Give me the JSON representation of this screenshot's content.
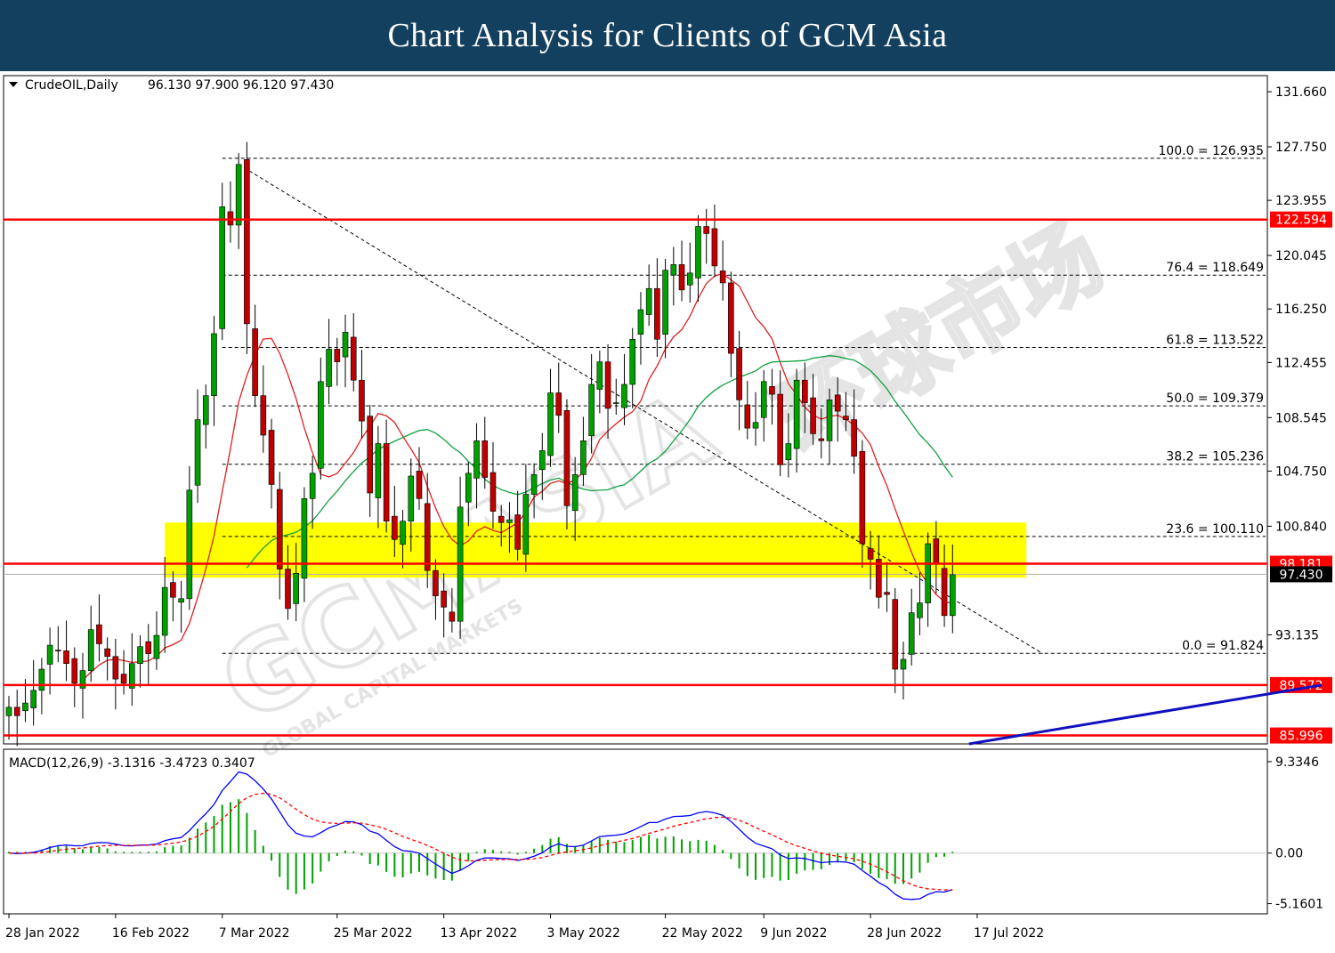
{
  "page": {
    "title": "Chart Analysis for Clients of GCM Asia"
  },
  "watermark": {
    "brand": "GCMASIA",
    "cn": "环球市场",
    "tagline": "GLOBAL CAPITAL MARKETS"
  },
  "colors": {
    "banner": "#14405f",
    "bull": "#00a000",
    "bear": "#c00000",
    "ma_fast": "#e02020",
    "ma_slow": "#10a040",
    "level": "#ff0000",
    "zone": "#ffff00",
    "trend": "#1010c0",
    "macd": "#0000ff",
    "signal": "#ff0000",
    "hist": "#00a000"
  },
  "chart_data": {
    "type": "candlestick",
    "header": {
      "symbol": "CrudeOIL,Daily",
      "ohlc": "96.130 97.900 96.120 97.430"
    },
    "ylim": [
      85.4,
      132.8
    ],
    "y_ticks": [
      "131.660",
      "127.750",
      "123.955",
      "120.045",
      "116.250",
      "112.455",
      "108.545",
      "104.750",
      "100.840",
      "93.135"
    ],
    "x_ticks": [
      {
        "label": "28 Jan 2022",
        "i": 0
      },
      {
        "label": "16 Feb 2022",
        "i": 13
      },
      {
        "label": "7 Mar 2022",
        "i": 26
      },
      {
        "label": "25 Mar 2022",
        "i": 40
      },
      {
        "label": "13 Apr 2022",
        "i": 53
      },
      {
        "label": "3 May 2022",
        "i": 66
      },
      {
        "label": "22 May 2022",
        "i": 80
      },
      {
        "label": "9 Jun 2022",
        "i": 92
      },
      {
        "label": "28 Jun 2022",
        "i": 105
      },
      {
        "label": "17 Jul 2022",
        "i": 118
      }
    ],
    "levels": [
      {
        "value": 122.594,
        "label": "122.594"
      },
      {
        "value": 98.181,
        "label": "98.181"
      },
      {
        "value": 89.572,
        "label": "89.572"
      },
      {
        "value": 85.996,
        "label": "85.996"
      }
    ],
    "last_price": {
      "value": 97.43,
      "label": "97.430"
    },
    "zone": {
      "from": 97.2,
      "to": 101.1,
      "start_i": 19,
      "end_i": 124
    },
    "fibonacci": [
      {
        "label": "100.0 = 126.935",
        "value": 126.935
      },
      {
        "label": "76.4 = 118.649",
        "value": 118.649
      },
      {
        "label": "61.8 = 113.522",
        "value": 113.522
      },
      {
        "label": "50.0 = 109.379",
        "value": 109.379
      },
      {
        "label": "38.2 = 105.236",
        "value": 105.236
      },
      {
        "label": "23.6 = 100.110",
        "value": 100.11
      },
      {
        "label": "0.0 = 91.824",
        "value": 91.824
      }
    ],
    "fib_start_i": 26,
    "fib_diagonal": {
      "from": [
        28,
        126.5
      ],
      "to": [
        126,
        91.8
      ]
    },
    "trendline": {
      "from": [
        117,
        85.4
      ],
      "to": [
        160,
        89.572
      ]
    },
    "closes": [
      88,
      87.4,
      88.3,
      89.2,
      90.7,
      92.4,
      92.0,
      91.1,
      89.7,
      90.6,
      93.5,
      92.5,
      91.6,
      90.0,
      89.7,
      91.1,
      92.3,
      91.8,
      93.1,
      96.5,
      95.8,
      95.7,
      103.4,
      108.4,
      110.1,
      114.5,
      123.5,
      122.2,
      126.5,
      115.2,
      110.1,
      107.3,
      103.8,
      97.8,
      95.0,
      97.5,
      102.8,
      104.6,
      111.1,
      113.4,
      112.5,
      114.6,
      111.2,
      108.3,
      103.2,
      106.7,
      101.2,
      99.9,
      101.2,
      104.4,
      102.8,
      97.7,
      95.9,
      95.1,
      94.1,
      102.2,
      104.6,
      106.9,
      104.3,
      101.9,
      101.1,
      101.3,
      99.2,
      103.1,
      104.5,
      106.2,
      110.3,
      108.7,
      102.3,
      104.5,
      106.9,
      110.9,
      112.5,
      109.2,
      109.6,
      110.9,
      114.1,
      116.2,
      117.7,
      114.1,
      119.0,
      119.4,
      117.6,
      118.8,
      122.1,
      121.6,
      119.3,
      118.1,
      113.1,
      109.8,
      107.8,
      108.2,
      111.1,
      110.2,
      105.2,
      106.7,
      111.2,
      109.6,
      107.4,
      106.9,
      109.8,
      109.0,
      108.4,
      105.8,
      99.6,
      98.5,
      95.8,
      96.0,
      90.7,
      91.4,
      94.7,
      95.4,
      99.6,
      98.2,
      94.5,
      97.4
    ],
    "macd": {
      "header": "MACD(12,26,9) -3.1316 -3.4723 0.3407",
      "ylim": [
        -6.2,
        10.6
      ],
      "y_ticks": [
        "9.3346",
        "0.00",
        "-5.1601"
      ],
      "hist_scale": 1.7
    }
  }
}
